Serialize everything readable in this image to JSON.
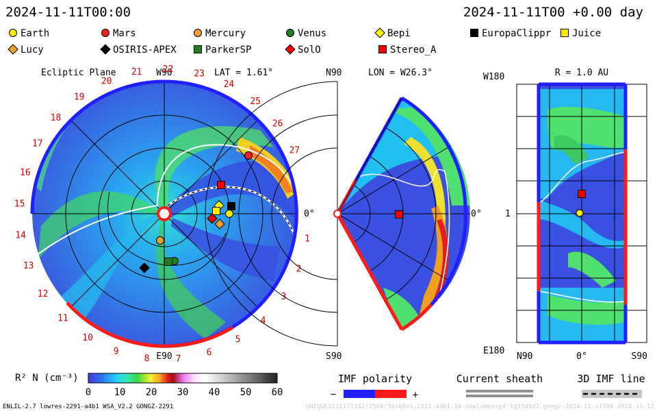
{
  "header": {
    "datetime_left": "2024-11-11T00:00",
    "datetime_right": "2024-11-11T00 +0.00 day"
  },
  "legend": [
    {
      "name": "Earth",
      "shape": "circle",
      "color": "#ffee00"
    },
    {
      "name": "Mars",
      "shape": "circle",
      "color": "#ee2222"
    },
    {
      "name": "Mercury",
      "shape": "circle",
      "color": "#f0a030"
    },
    {
      "name": "Venus",
      "shape": "circle",
      "color": "#208020"
    },
    {
      "name": "Bepi",
      "shape": "diamond",
      "color": "#ffff00"
    },
    {
      "name": "EuropaClippr",
      "shape": "square",
      "color": "#000000"
    },
    {
      "name": "Juice",
      "shape": "square",
      "color": "#ffee00"
    },
    {
      "name": "Lucy",
      "shape": "diamond",
      "color": "#f0a030"
    },
    {
      "name": "OSIRIS-APEX",
      "shape": "diamond",
      "color": "#000000"
    },
    {
      "name": "ParkerSP",
      "shape": "square",
      "color": "#208020"
    },
    {
      "name": "SolO",
      "shape": "diamond",
      "color": "#ee0000"
    },
    {
      "name": "Stereo_A",
      "shape": "square",
      "color": "#ee0000"
    }
  ],
  "panels": {
    "ecliptic": {
      "title": "Ecliptic Plane",
      "lat_label": "LAT = 1.61°",
      "w90": "W90",
      "e90": "E90",
      "zero": "0°",
      "sector_labels": [
        "1",
        "2",
        "3",
        "4",
        "5",
        "6",
        "7",
        "8",
        "9",
        "10",
        "11",
        "12",
        "13",
        "14",
        "15",
        "16",
        "17",
        "18",
        "19",
        "20",
        "21",
        "22",
        "23",
        "24",
        "25",
        "26",
        "27"
      ]
    },
    "meridional": {
      "title": "LON = W26.3°",
      "n90": "N90",
      "s90": "S90",
      "zero": "0°"
    },
    "radial": {
      "title": "R = 1.0 AU",
      "w180": "W180",
      "e180": "E180",
      "one": "1",
      "n90": "N90",
      "zero": "0°",
      "s90": "S90"
    }
  },
  "colorbar": {
    "label": "R² N (cm⁻³)",
    "ticks": [
      "0",
      "10",
      "20",
      "30",
      "40",
      "50",
      "60"
    ],
    "range": [
      0,
      60
    ]
  },
  "imf": {
    "title": "IMF polarity",
    "minus": "−",
    "plus": "+",
    "sheath": "Current sheath",
    "line": "3D IMF line"
  },
  "footer": {
    "left": "ENLIL-2.7 lowres-2291-a4b1 WSA_V2.2 GONGZ-2291",
    "right": "UNIQUE1112171142/2564/30x60x1.2221-a4b1:16-noplumes+gd-1g53d5d2.gongz-2024-11-11T00    2024-11-12"
  },
  "chart_data": {
    "type": "heatmap",
    "quantity": "R² N (cm⁻³)",
    "color_range": [
      0,
      60
    ],
    "time": "2024-11-11T00:00",
    "ecliptic_latitude": "1.61°",
    "meridional_longitude": "W26.3°",
    "radial_distance": "1.0 AU",
    "bodies": [
      "Earth",
      "Mars",
      "Mercury",
      "Venus",
      "Bepi",
      "EuropaClippr",
      "Juice",
      "Lucy",
      "OSIRIS-APEX",
      "ParkerSP",
      "SolO",
      "Stereo_A"
    ]
  }
}
